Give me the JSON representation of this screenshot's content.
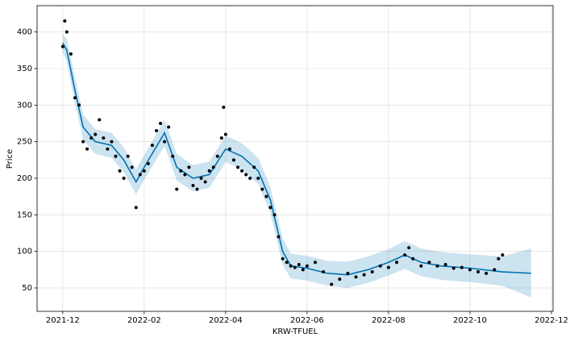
{
  "chart_data": {
    "type": "line",
    "x_label": "KRW-TFUEL",
    "y_label": "Price",
    "xlim": [
      -0.63,
      12.04
    ],
    "ylim": [
      18,
      436
    ],
    "xticks": [
      {
        "value": 0,
        "label": "2021-12"
      },
      {
        "value": 2,
        "label": "2022-02"
      },
      {
        "value": 4,
        "label": "2022-04"
      },
      {
        "value": 6,
        "label": "2022-06"
      },
      {
        "value": 8,
        "label": "2022-08"
      },
      {
        "value": 10,
        "label": "2022-10"
      },
      {
        "value": 12,
        "label": "2022-12"
      }
    ],
    "yticks": [
      50,
      100,
      150,
      200,
      250,
      300,
      350,
      400
    ],
    "grid": true,
    "series": [
      {
        "kind": "band",
        "color": "#0072B2",
        "x": [
          0,
          0.1,
          0.3,
          0.5,
          0.8,
          1.2,
          1.5,
          1.8,
          2.0,
          2.5,
          2.8,
          3.2,
          3.6,
          4.0,
          4.4,
          4.8,
          5.1,
          5.4,
          5.6,
          6.0,
          6.5,
          7.0,
          7.5,
          8.0,
          8.4,
          8.8,
          9.3,
          10.0,
          10.8,
          11.5
        ],
        "upper": [
          398,
          390,
          337,
          287,
          267,
          262,
          242,
          212,
          232,
          280,
          233,
          218,
          223,
          258,
          248,
          228,
          188,
          118,
          97,
          94,
          87,
          86,
          93,
          103,
          114,
          104,
          99,
          96,
          93,
          104
        ],
        "lower": [
          372,
          360,
          303,
          253,
          233,
          228,
          208,
          178,
          198,
          244,
          197,
          182,
          187,
          222,
          212,
          192,
          152,
          82,
          63,
          60,
          53,
          50,
          57,
          67,
          76,
          66,
          61,
          58,
          53,
          37
        ]
      },
      {
        "kind": "line",
        "color": "#0072B2",
        "x": [
          0,
          0.1,
          0.3,
          0.5,
          0.8,
          1.2,
          1.5,
          1.8,
          2.0,
          2.5,
          2.8,
          3.2,
          3.6,
          4.0,
          4.4,
          4.8,
          5.1,
          5.4,
          5.6,
          6.0,
          6.5,
          7.0,
          7.5,
          8.0,
          8.4,
          8.8,
          9.3,
          10.0,
          10.8,
          11.5
        ],
        "values": [
          385,
          375,
          320,
          270,
          250,
          245,
          225,
          195,
          215,
          262,
          215,
          200,
          205,
          240,
          230,
          210,
          170,
          100,
          80,
          77,
          70,
          68,
          75,
          85,
          95,
          85,
          80,
          77,
          72,
          70
        ]
      },
      {
        "kind": "scatter",
        "color": "#000000",
        "x": [
          0,
          0.05,
          0.1,
          0.2,
          0.3,
          0.4,
          0.5,
          0.6,
          0.7,
          0.8,
          0.9,
          1.0,
          1.1,
          1.2,
          1.3,
          1.4,
          1.5,
          1.6,
          1.7,
          1.8,
          1.9,
          2.0,
          2.1,
          2.2,
          2.3,
          2.4,
          2.5,
          2.6,
          2.7,
          2.8,
          2.9,
          3.0,
          3.1,
          3.2,
          3.3,
          3.4,
          3.5,
          3.6,
          3.7,
          3.8,
          3.9,
          3.95,
          4.0,
          4.1,
          4.2,
          4.3,
          4.4,
          4.5,
          4.6,
          4.7,
          4.8,
          4.9,
          5.0,
          5.1,
          5.2,
          5.3,
          5.4,
          5.5,
          5.6,
          5.7,
          5.8,
          5.9,
          6.0,
          6.2,
          6.4,
          6.6,
          6.8,
          7.0,
          7.2,
          7.4,
          7.6,
          7.8,
          8.0,
          8.2,
          8.4,
          8.5,
          8.6,
          8.8,
          9.0,
          9.2,
          9.4,
          9.6,
          9.8,
          10.0,
          10.2,
          10.4,
          10.6,
          10.7,
          10.8
        ],
        "values": [
          380,
          415,
          400,
          370,
          310,
          300,
          250,
          240,
          255,
          260,
          280,
          255,
          240,
          250,
          230,
          210,
          200,
          230,
          215,
          160,
          205,
          210,
          220,
          245,
          265,
          275,
          250,
          270,
          230,
          185,
          210,
          205,
          215,
          190,
          185,
          200,
          195,
          210,
          215,
          230,
          255,
          297,
          260,
          240,
          225,
          215,
          210,
          205,
          200,
          215,
          200,
          185,
          175,
          160,
          150,
          120,
          90,
          85,
          80,
          78,
          82,
          75,
          80,
          85,
          72,
          55,
          62,
          70,
          65,
          68,
          72,
          80,
          78,
          85,
          95,
          105,
          90,
          80,
          85,
          80,
          82,
          77,
          78,
          75,
          72,
          70,
          75,
          90,
          95
        ]
      }
    ]
  }
}
